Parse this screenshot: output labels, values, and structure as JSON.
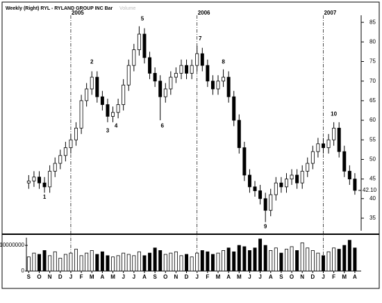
{
  "chart_data": {
    "type": "candlestick",
    "title": "Weekly  (Right)  RYL - RYLAND GROUP INC  Bar",
    "subtitle": "Volume",
    "color": "#000000",
    "x": [
      0,
      0.5,
      1,
      1.5,
      2,
      2.5,
      3,
      3.5,
      4,
      4.5,
      5,
      5.5,
      6,
      6.5,
      7,
      7.5,
      8,
      8.5,
      9,
      9.5,
      10,
      10.5,
      11,
      11.5,
      12,
      12.5,
      13,
      13.5,
      14,
      14.5,
      15,
      15.5,
      16,
      16.5,
      17,
      17.5,
      18,
      18.5,
      19,
      19.5,
      20,
      20.5,
      21,
      21.5,
      22,
      22.5,
      23,
      23.5,
      24,
      24.5,
      25,
      25.5,
      26,
      26.5,
      27,
      27.5,
      28,
      28.5,
      29,
      29.5,
      30,
      30.5,
      31
    ],
    "open": [
      44,
      44.5,
      45.5,
      44,
      43,
      47,
      49,
      51,
      53,
      55,
      58,
      65,
      68,
      71,
      66,
      64,
      61,
      62,
      64,
      69,
      74,
      78,
      82,
      76,
      72,
      70,
      66,
      68,
      71,
      72,
      74,
      72,
      74,
      77,
      74,
      70,
      68,
      70,
      71,
      66,
      60,
      53,
      46,
      43,
      42,
      40,
      37,
      41,
      44,
      43,
      45,
      46,
      44,
      47,
      49,
      52,
      54,
      53,
      55,
      58,
      52,
      47,
      45
    ],
    "high": [
      46,
      47,
      47,
      45.5,
      48.5,
      50.5,
      52.5,
      54.5,
      56.5,
      59.5,
      66.5,
      69.5,
      72.5,
      72.5,
      67.5,
      65.5,
      63.5,
      65.5,
      70.5,
      75.5,
      79.5,
      84,
      83.5,
      77.5,
      73.5,
      71.5,
      69.5,
      72.5,
      73.5,
      75.5,
      75.5,
      75.5,
      79,
      78.5,
      75.5,
      71.5,
      71.5,
      73,
      72.5,
      67.5,
      61.5,
      54.5,
      47.5,
      44.5,
      43.5,
      41.5,
      42.5,
      45.5,
      45.5,
      46.5,
      47.5,
      47.5,
      48.5,
      50.5,
      53.5,
      55.5,
      55.5,
      56.5,
      59.5,
      59.5,
      53.5,
      48.5,
      46.5
    ],
    "low": [
      42.5,
      43,
      42.5,
      41.5,
      41.5,
      45.5,
      47.5,
      49.5,
      51.5,
      53.5,
      56.5,
      63.5,
      66.5,
      64.5,
      62.5,
      59.5,
      59.5,
      60.5,
      62.5,
      67.5,
      72.5,
      76.5,
      74.5,
      70.5,
      68.5,
      60,
      64.5,
      66.5,
      69.5,
      70.5,
      70.5,
      70.5,
      72.5,
      72.5,
      68.5,
      66.5,
      66.5,
      68.5,
      64.5,
      58.5,
      51.5,
      44.5,
      41.5,
      40.5,
      38.5,
      34,
      35.5,
      39.5,
      41.5,
      41.5,
      43.5,
      42.5,
      42.5,
      45.5,
      47.5,
      50.5,
      51.5,
      51.5,
      53.5,
      50.5,
      45.5,
      43.5,
      41
    ],
    "close": [
      44.5,
      45.5,
      44,
      43,
      47,
      49,
      51,
      53,
      55,
      58,
      65,
      68,
      71,
      66,
      64,
      61,
      62,
      64,
      69,
      74,
      78,
      82,
      76,
      72,
      70,
      66,
      68,
      71,
      72,
      74,
      72,
      74,
      77,
      74,
      70,
      68,
      70,
      71,
      66,
      60,
      53,
      46,
      43,
      42,
      40,
      37,
      41,
      44,
      43,
      45,
      46,
      44,
      47,
      49,
      52,
      54,
      53,
      55,
      58,
      52,
      47,
      45,
      42.1
    ],
    "volume": [
      5500000,
      7000000,
      6500000,
      8000000,
      6000000,
      7500000,
      5000000,
      6500000,
      7000000,
      8500000,
      6000000,
      7000000,
      8000000,
      6500000,
      7500000,
      6000000,
      5500000,
      6000000,
      7000000,
      6500000,
      6000000,
      7500000,
      6000000,
      7000000,
      9000000,
      8000000,
      6500000,
      7000000,
      7500000,
      6000000,
      6500000,
      5500000,
      7000000,
      8000000,
      7500000,
      6500000,
      7000000,
      8000000,
      9000000,
      7500000,
      10000000,
      9500000,
      8000000,
      9000000,
      12500000,
      10000000,
      8000000,
      9000000,
      7000000,
      8500000,
      9500000,
      8000000,
      11000000,
      9000000,
      8000000,
      7000000,
      6000000,
      7500000,
      9000000,
      8500000,
      10000000,
      12000000,
      9000000
    ],
    "xlim": [
      -2.4,
      31.6
    ],
    "xticks": [
      {
        "value": 0,
        "label": "S"
      },
      {
        "value": 1,
        "label": "O"
      },
      {
        "value": 2,
        "label": "N"
      },
      {
        "value": 3,
        "label": "D"
      },
      {
        "value": 4,
        "label": "J"
      },
      {
        "value": 5,
        "label": "F"
      },
      {
        "value": 6,
        "label": "M"
      },
      {
        "value": 7,
        "label": "A"
      },
      {
        "value": 8,
        "label": "M"
      },
      {
        "value": 9,
        "label": "J"
      },
      {
        "value": 10,
        "label": "J"
      },
      {
        "value": 11,
        "label": "A"
      },
      {
        "value": 12,
        "label": "S"
      },
      {
        "value": 13,
        "label": "O"
      },
      {
        "value": 14,
        "label": "N"
      },
      {
        "value": 15,
        "label": "D"
      },
      {
        "value": 16,
        "label": "J"
      },
      {
        "value": 17,
        "label": "F"
      },
      {
        "value": 18,
        "label": "M"
      },
      {
        "value": 19,
        "label": "A"
      },
      {
        "value": 20,
        "label": "M"
      },
      {
        "value": 21,
        "label": "J"
      },
      {
        "value": 22,
        "label": "J"
      },
      {
        "value": 23,
        "label": "A"
      },
      {
        "value": 24,
        "label": "S"
      },
      {
        "value": 25,
        "label": "O"
      },
      {
        "value": 26,
        "label": "N"
      },
      {
        "value": 27,
        "label": "D"
      },
      {
        "value": 28,
        "label": "J"
      },
      {
        "value": 29,
        "label": "F"
      },
      {
        "value": 30,
        "label": "M"
      },
      {
        "value": 31,
        "label": "A"
      }
    ],
    "ylim": [
      31.8,
      86.8
    ],
    "yticks": [
      35,
      40,
      45,
      50,
      55,
      60,
      65,
      70,
      75,
      80,
      85
    ],
    "last_price": {
      "value": 42.1,
      "label": "42.10"
    },
    "volume_ylim": [
      0,
      13000000
    ],
    "volume_yticks": [
      0,
      10000000
    ],
    "year_markers": [
      {
        "x": 4,
        "label": "2005"
      },
      {
        "x": 16,
        "label": "2006"
      },
      {
        "x": 28,
        "label": "2007"
      }
    ],
    "annotations": [
      {
        "x": 1.5,
        "y": 40.3,
        "label": "1"
      },
      {
        "x": 6,
        "y": 74.8,
        "label": "2"
      },
      {
        "x": 7.5,
        "y": 57.3,
        "label": "3"
      },
      {
        "x": 8.3,
        "y": 58.5,
        "label": "4"
      },
      {
        "x": 10.8,
        "y": 85.8,
        "label": "5"
      },
      {
        "x": 12.7,
        "y": 58.5,
        "label": "6"
      },
      {
        "x": 16.3,
        "y": 80.8,
        "label": "7"
      },
      {
        "x": 18.5,
        "y": 74.8,
        "label": "8"
      },
      {
        "x": 22.5,
        "y": 32.8,
        "label": "9"
      },
      {
        "x": 29,
        "y": 61.5,
        "label": "10"
      }
    ]
  }
}
